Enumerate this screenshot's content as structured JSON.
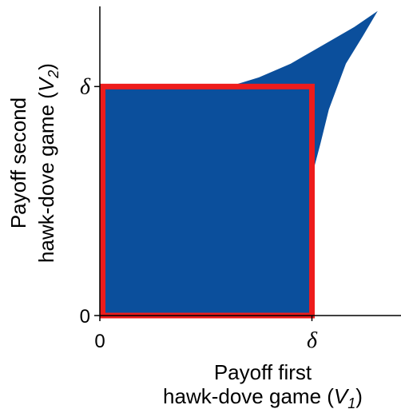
{
  "chart_data": {
    "type": "area",
    "title": "",
    "xlabel": {
      "line1": "Payoff first",
      "line2_prefix": "hawk-dove game (",
      "var": "V",
      "sub": "1",
      "suffix": ")"
    },
    "ylabel": {
      "line1": "Payoff second",
      "line2_prefix": "hawk-dove game (",
      "var": "V",
      "sub": "2",
      "suffix": ")"
    },
    "xlim": [
      0,
      1.42
    ],
    "ylim": [
      0,
      1.35
    ],
    "x_ticks": [
      {
        "value": 0,
        "label": "0"
      },
      {
        "value": 1,
        "label": "δ"
      }
    ],
    "y_ticks": [
      {
        "value": 0,
        "label": "0"
      },
      {
        "value": 1,
        "label": "δ"
      }
    ],
    "region": {
      "name": "",
      "color": "#0b4f9c",
      "outline": [
        [
          0,
          0
        ],
        [
          0,
          1
        ],
        [
          0.61,
          1
        ],
        [
          0.75,
          1.04
        ],
        [
          0.9,
          1.1
        ],
        [
          1.05,
          1.18
        ],
        [
          1.2,
          1.26
        ],
        [
          1.31,
          1.33
        ],
        [
          1.24,
          1.22
        ],
        [
          1.16,
          1.1
        ],
        [
          1.08,
          0.9
        ],
        [
          1.04,
          0.75
        ],
        [
          1,
          0.61
        ],
        [
          1,
          0
        ]
      ]
    },
    "box": {
      "name": "",
      "color": "#ee1c1c",
      "x": [
        0,
        1
      ],
      "y": [
        0,
        1
      ]
    },
    "grid": false,
    "legend": "none"
  }
}
